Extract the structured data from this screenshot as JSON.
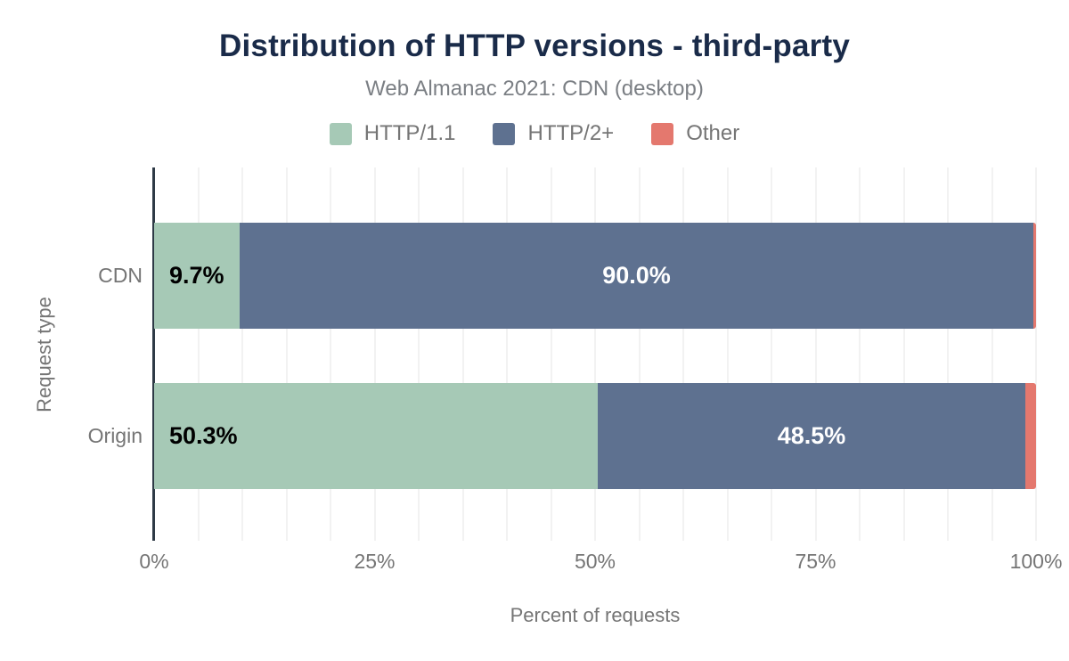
{
  "chart_data": {
    "type": "bar",
    "orientation": "horizontal",
    "stacked": true,
    "title": "Distribution of HTTP versions - third-party",
    "subtitle": "Web Almanac 2021: CDN (desktop)",
    "xlabel": "Percent of requests",
    "ylabel": "Request type",
    "xlim": [
      0,
      100
    ],
    "xticks": [
      {
        "value": 0,
        "label": "0%"
      },
      {
        "value": 25,
        "label": "25%"
      },
      {
        "value": 50,
        "label": "50%"
      },
      {
        "value": 75,
        "label": "75%"
      },
      {
        "value": 100,
        "label": "100%"
      }
    ],
    "grid": true,
    "grid_step_percent": 5,
    "legend_position": "top",
    "categories": [
      "CDN",
      "Origin"
    ],
    "series": [
      {
        "name": "HTTP/1.1",
        "color": "#a6c9b6",
        "values": [
          9.7,
          50.3
        ]
      },
      {
        "name": "HTTP/2+",
        "color": "#5e7190",
        "values": [
          90.0,
          48.5
        ]
      },
      {
        "name": "Other",
        "color": "#e4786e",
        "values": [
          0.3,
          1.2
        ]
      }
    ],
    "value_labels": [
      [
        "9.7%",
        "90.0%",
        ""
      ],
      [
        "50.3%",
        "48.5%",
        ""
      ]
    ]
  },
  "colors": {
    "title": "#1a2b49",
    "muted_text": "#757575",
    "axis_line": "#2e3a46",
    "gridline": "#f2f2f2",
    "label_on_light": "#000000",
    "label_on_dark": "#ffffff"
  }
}
